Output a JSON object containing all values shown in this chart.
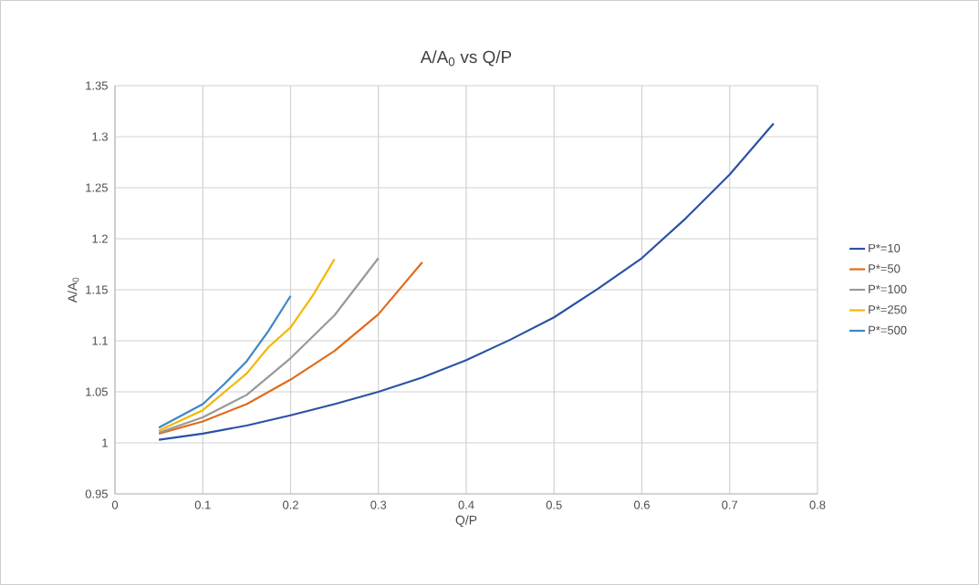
{
  "chart_data": {
    "type": "line",
    "title": "A/A$_{0}$ vs Q/P",
    "xlabel": "Q/P",
    "ylabel": "A/A$_{0}$",
    "xlim": [
      0,
      0.8
    ],
    "xticks": [
      0,
      0.1,
      0.2,
      0.3,
      0.4,
      0.5,
      0.6,
      0.7,
      0.8
    ],
    "ylim": [
      0.95,
      1.35
    ],
    "yticks": [
      0.95,
      1,
      1.05,
      1.1,
      1.15,
      1.2,
      1.25,
      1.3,
      1.35
    ],
    "grid": true,
    "legend": "right",
    "marker": "none",
    "line_style": "solid",
    "series": [
      {
        "name": "P*=10",
        "color": "#2a52a6",
        "x": [
          0.05,
          0.1,
          0.15,
          0.2,
          0.25,
          0.3,
          0.35,
          0.4,
          0.45,
          0.5,
          0.55,
          0.6,
          0.65,
          0.7,
          0.75
        ],
        "values": [
          1.003,
          1.009,
          1.017,
          1.027,
          1.038,
          1.05,
          1.064,
          1.081,
          1.101,
          1.123,
          1.151,
          1.181,
          1.22,
          1.263,
          1.313
        ]
      },
      {
        "name": "P*=50",
        "color": "#e06c1e",
        "x": [
          0.05,
          0.1,
          0.15,
          0.2,
          0.25,
          0.3,
          0.35
        ],
        "values": [
          1.009,
          1.021,
          1.038,
          1.062,
          1.09,
          1.126,
          1.177
        ]
      },
      {
        "name": "P*=100",
        "color": "#999999",
        "x": [
          0.05,
          0.1,
          0.15,
          0.2,
          0.25,
          0.3
        ],
        "values": [
          1.01,
          1.025,
          1.047,
          1.083,
          1.125,
          1.181
        ]
      },
      {
        "name": "P*=250",
        "color": "#f5b700",
        "x": [
          0.05,
          0.1,
          0.15,
          0.175,
          0.2,
          0.225,
          0.25
        ],
        "values": [
          1.012,
          1.032,
          1.068,
          1.094,
          1.113,
          1.144,
          1.18
        ]
      },
      {
        "name": "P*=500",
        "color": "#3f86c6",
        "x": [
          0.05,
          0.1,
          0.125,
          0.15,
          0.175,
          0.2
        ],
        "values": [
          1.015,
          1.038,
          1.058,
          1.08,
          1.11,
          1.144
        ]
      }
    ]
  }
}
